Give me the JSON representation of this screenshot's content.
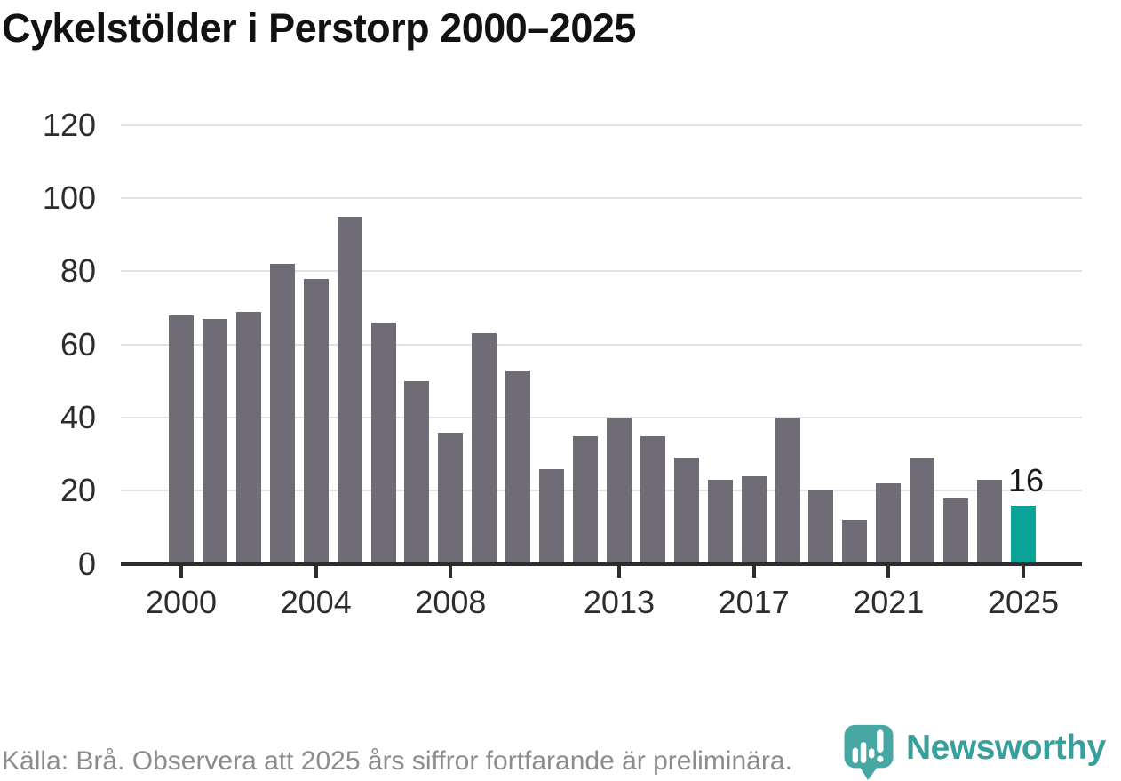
{
  "title": "Cykelstölder i Perstorp 2000–2025",
  "footer": {
    "source_note": "Källa: Brå. Observera att 2025 års siffror fortfarande är preliminära."
  },
  "branding": {
    "wordmark": "Newsworthy",
    "icon": "bar-chart-pin-icon",
    "icon_color": "#47a7a2",
    "wordmark_color": "#38a09c"
  },
  "chart_data": {
    "type": "bar",
    "title": "Cykelstölder i Perstorp 2000–2025",
    "categories": [
      "2000",
      "2001",
      "2002",
      "2003",
      "2004",
      "2005",
      "2006",
      "2007",
      "2008",
      "2009",
      "2010",
      "2011",
      "2012",
      "2013",
      "2014",
      "2015",
      "2016",
      "2017",
      "2018",
      "2019",
      "2020",
      "2021",
      "2022",
      "2023",
      "2024",
      "2025"
    ],
    "values": [
      68,
      67,
      69,
      82,
      78,
      95,
      66,
      50,
      36,
      63,
      53,
      26,
      35,
      40,
      35,
      29,
      23,
      24,
      40,
      20,
      12,
      22,
      29,
      18,
      23,
      16
    ],
    "xlabel": "",
    "ylabel": "",
    "ylim": [
      0,
      120
    ],
    "y_ticks": [
      0,
      20,
      40,
      60,
      80,
      100,
      120
    ],
    "x_tick_labels": [
      "2000",
      "2004",
      "2008",
      "2013",
      "2017",
      "2021",
      "2025"
    ],
    "x_tick_indices": [
      0,
      4,
      8,
      13,
      17,
      21,
      25
    ],
    "grid": true,
    "legend": false,
    "bar_color": "#6f6c75",
    "highlight_color": "#0aa396",
    "highlight_index": 25,
    "annotation": {
      "text": "16",
      "index": 25
    },
    "axis_color": "#2d2d2d",
    "gridline_color": "#e2e2e2"
  }
}
